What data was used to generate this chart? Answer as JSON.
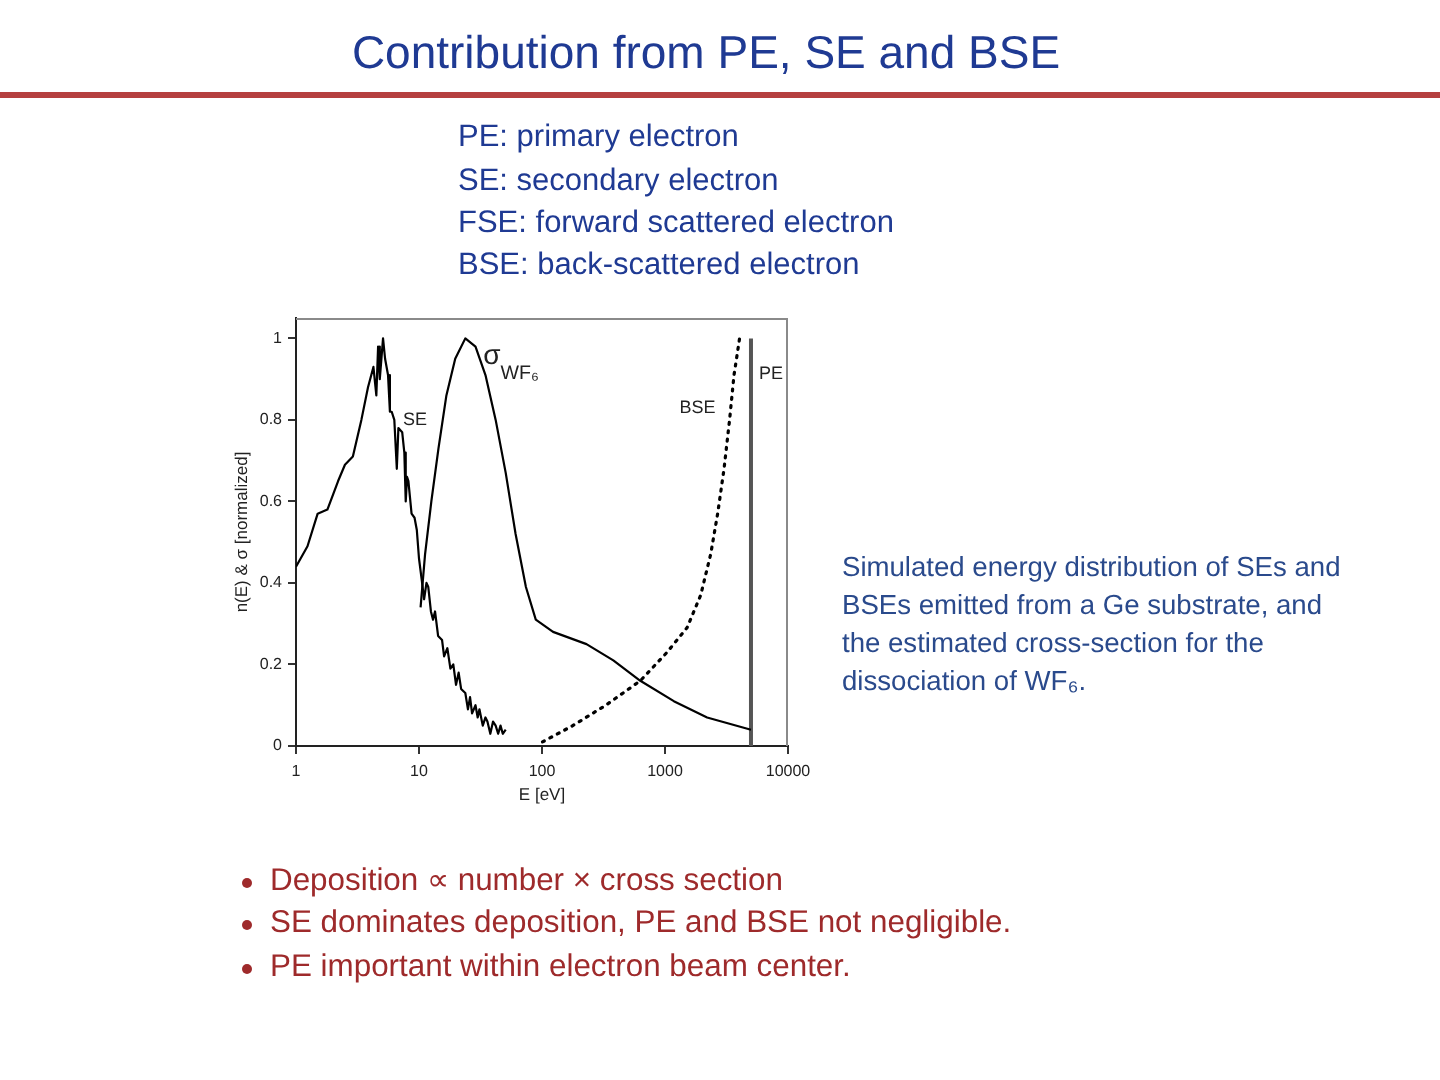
{
  "chart_data": {
    "type": "line",
    "title": "Contribution from PE, SE and BSE",
    "xlabel": "E [eV]",
    "ylabel": "n(E) & σ [normalized]",
    "log": "x",
    "xlim": [
      1,
      10000
    ],
    "xticks": [
      1,
      10,
      100,
      1000,
      10000
    ],
    "ylim": [
      0,
      1.05
    ],
    "yticks": [
      0,
      0.2,
      0.4,
      0.6,
      0.8,
      1
    ],
    "legend": false,
    "marker": "none",
    "annotations": [
      "PE: primary electron",
      "SE: secondary electron",
      "FSE: forward scattered electron",
      "BSE: back-scattered electron",
      "Simulated energy distribution of SEs and BSEs emitted from a Ge substrate, and the estimated cross-section for the dissociation of WF₆.",
      "Deposition ∝ number × cross section",
      "SE dominates deposition, PE and BSE not negligible.",
      "PE important within electron beam center."
    ],
    "series": [
      {
        "name": "SE",
        "color": "#000000",
        "x": [
          1,
          1.24,
          1.5,
          1.8,
          2.2,
          2.5,
          2.9,
          3.4,
          3.85,
          4.26,
          4.5,
          4.65,
          4.8,
          5.1,
          5.3,
          5.6,
          5.8,
          6,
          6.3,
          6.6,
          6.8,
          7,
          7.3,
          7.6,
          7.8,
          8,
          8.2,
          8.7,
          9.2,
          9.6,
          10,
          10.5,
          11,
          11.5,
          11.9,
          12.5,
          13,
          13.5,
          14.3,
          15.4,
          16,
          17,
          18,
          19,
          20,
          21,
          22,
          23.8,
          25,
          26,
          27,
          28.8,
          30,
          31,
          33,
          34.7,
          36,
          38,
          40,
          42,
          44,
          46,
          48,
          50.7
        ],
        "values": [
          0.44,
          0.49,
          0.57,
          0.58,
          0.65,
          0.69,
          0.71,
          0.8,
          0.88,
          0.93,
          0.86,
          0.98,
          0.9,
          1,
          0.95,
          0.91,
          0.82,
          0.82,
          0.8,
          0.68,
          0.78,
          0.78,
          0.77,
          0.72,
          0.6,
          0.66,
          0.65,
          0.57,
          0.56,
          0.53,
          0.46,
          0.41,
          0.36,
          0.4,
          0.39,
          0.33,
          0.31,
          0.33,
          0.27,
          0.26,
          0.22,
          0.24,
          0.19,
          0.2,
          0.15,
          0.18,
          0.14,
          0.13,
          0.09,
          0.12,
          0.08,
          0.1,
          0.07,
          0.09,
          0.05,
          0.07,
          0.06,
          0.03,
          0.06,
          0.05,
          0.03,
          0.05,
          0.03,
          0.04
        ]
      },
      {
        "name": "σ$_{WF₆}$",
        "color": "#000000",
        "x": [
          10.3,
          11.2,
          12.6,
          14.4,
          16.7,
          19.7,
          23.8,
          28.8,
          34.7,
          42,
          50.7,
          61,
          74,
          89,
          123,
          230,
          380,
          630,
          1180,
          2200,
          5000
        ],
        "values": [
          0.34,
          0.47,
          0.6,
          0.73,
          0.86,
          0.95,
          1,
          0.98,
          0.91,
          0.8,
          0.67,
          0.52,
          0.39,
          0.31,
          0.28,
          0.25,
          0.21,
          0.16,
          0.11,
          0.07,
          0.04
        ]
      },
      {
        "name": "BSE",
        "color": "#000000",
        "line_style": "dotted",
        "x": [
          101,
          178,
          330,
          630,
          1040,
          1510,
          1950,
          2350,
          2680,
          3020,
          3350,
          3640,
          4040
        ],
        "values": [
          0.01,
          0.05,
          0.1,
          0.16,
          0.23,
          0.29,
          0.37,
          0.47,
          0.57,
          0.68,
          0.8,
          0.91,
          1
        ]
      },
      {
        "name": "PE",
        "color": "#555555",
        "x": [
          5000,
          5000
        ],
        "values": [
          0,
          1
        ]
      }
    ]
  }
}
